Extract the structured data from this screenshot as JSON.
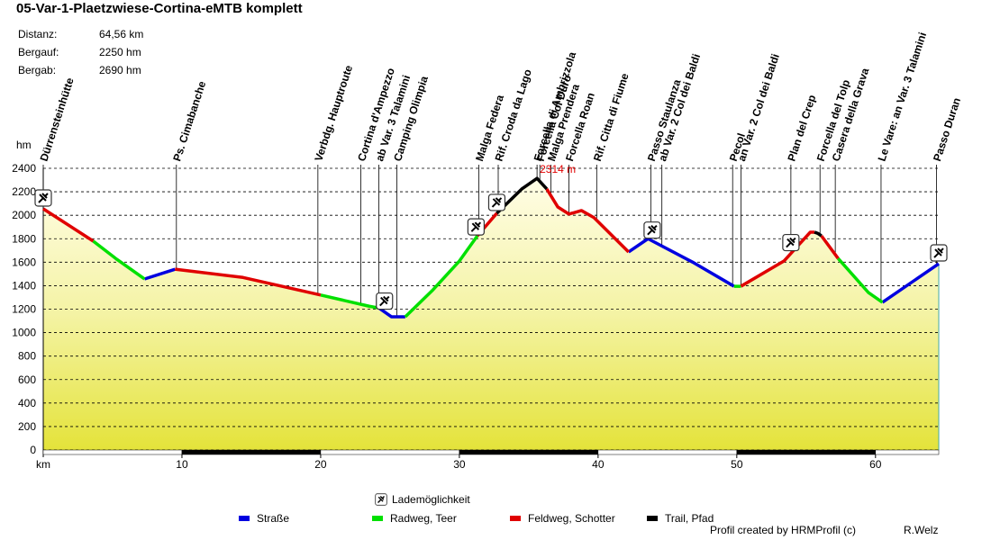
{
  "chart_data": {
    "type": "elevation-profile",
    "title": "05-Var-1-Plaetzwiese-Cortina-eMTB komplett",
    "stats": [
      {
        "label": "Distanz:",
        "value": "64,56 km"
      },
      {
        "label": "Bergauf:",
        "value": "2250 hm"
      },
      {
        "label": "Bergab:",
        "value": "2690 hm"
      }
    ],
    "y_label": "hm",
    "x_label": "km",
    "xlim": [
      0,
      64.56
    ],
    "xticks": [
      10,
      20,
      30,
      40,
      50,
      60
    ],
    "ylim": [
      0,
      2400
    ],
    "yticks": [
      0,
      200,
      400,
      600,
      800,
      1000,
      1200,
      1400,
      1600,
      1800,
      2000,
      2200,
      2400
    ],
    "grid": true,
    "x": [
      0,
      3.6,
      5.3,
      7.3,
      9.5,
      14.4,
      20,
      23.5,
      24.2,
      25.1,
      26.1,
      28.1,
      30,
      31.3,
      32.7,
      34.5,
      35.6,
      36.3,
      37.1,
      37.9,
      38.8,
      39.7,
      42.2,
      43.6,
      46.9,
      49.8,
      50.3,
      53.4,
      55.3,
      55.6,
      55.85,
      56.1,
      57.3,
      59.5,
      60.5,
      64.56
    ],
    "series": [
      {
        "name": "Straße",
        "color": "#0000e0",
        "values": [
          null,
          null,
          null,
          1457,
          1540,
          null,
          null,
          null,
          1210,
          1135,
          1135,
          null,
          null,
          null,
          null,
          null,
          null,
          null,
          null,
          null,
          null,
          null,
          1687,
          1800,
          1595,
          1395,
          null,
          null,
          null,
          null,
          null,
          null,
          null,
          null,
          1258,
          1587
        ]
      },
      {
        "name": "Radweg, Teer",
        "color": "#00e000",
        "values": [
          null,
          1780,
          1625,
          1457,
          null,
          null,
          1320,
          1225,
          1210,
          null,
          1135,
          1365,
          1610,
          1825,
          null,
          null,
          null,
          null,
          null,
          null,
          null,
          null,
          null,
          null,
          null,
          1395,
          1395,
          null,
          null,
          null,
          null,
          null,
          1633,
          1340,
          1258,
          null
        ]
      },
      {
        "name": "Feldweg, Schotter",
        "color": "#e00000",
        "values": [
          2055,
          1780,
          null,
          null,
          1540,
          1470,
          1320,
          null,
          null,
          null,
          null,
          null,
          null,
          1825,
          2017,
          null,
          null,
          2224,
          2070,
          2010,
          2040,
          1980,
          1687,
          null,
          null,
          null,
          1395,
          1610,
          1856,
          1856,
          null,
          1825,
          1633,
          null,
          null,
          null
        ]
      },
      {
        "name": "Trail, Pfad",
        "color": "#000000",
        "values": [
          null,
          null,
          null,
          null,
          null,
          null,
          null,
          null,
          null,
          null,
          null,
          null,
          null,
          null,
          2017,
          2224,
          2314,
          2224,
          null,
          null,
          null,
          null,
          null,
          null,
          null,
          null,
          null,
          null,
          null,
          1856,
          1845,
          1825,
          null,
          null,
          null,
          null
        ]
      }
    ],
    "peak_label": "2314 m",
    "peak_color": "#e00000",
    "charging": {
      "name": "Lademöglichkeit",
      "x": [
        0,
        24.6,
        31.2,
        32.7,
        43.9,
        53.9,
        64.56
      ]
    },
    "waypoints": [
      {
        "name": "Dürrensteinhütte",
        "x": 0
      },
      {
        "name": "Ps. Cimabanche",
        "x": 9.6
      },
      {
        "name": "Verbdg. Hauptroute",
        "x": 19.8
      },
      {
        "name": "Cortina d'Ampezzo",
        "x": 22.9
      },
      {
        "name": "ab Var. 3 Talamini",
        "x": 24.2
      },
      {
        "name": "Camping Olimpia",
        "x": 25.5
      },
      {
        "name": "Malga Federa",
        "x": 31.4
      },
      {
        "name": "Rif. Croda da Lago",
        "x": 32.8
      },
      {
        "name": "Forcella di Ambrizzola",
        "x": 35.6
      },
      {
        "name": "Forcella Col Duro",
        "x": 35.8
      },
      {
        "name": "Malga Prendera",
        "x": 36.6
      },
      {
        "name": "Forcella Roan",
        "x": 37.9
      },
      {
        "name": "Rif. Citta di Fiume",
        "x": 39.9
      },
      {
        "name": "Passo Staulanza",
        "x": 43.8
      },
      {
        "name": "ab Var. 2 Col dei Baldi",
        "x": 44.6
      },
      {
        "name": "Pecol",
        "x": 49.7
      },
      {
        "name": "an Var. 2 Col dei Baldi",
        "x": 50.3
      },
      {
        "name": "Plan del Crep",
        "x": 53.9
      },
      {
        "name": "Forcella del Tolp",
        "x": 56.0
      },
      {
        "name": "Casera della Grava",
        "x": 57.1
      },
      {
        "name": "Le Vare: an Var. 3 Talamini",
        "x": 60.4
      },
      {
        "name": "Passo Duran",
        "x": 64.4
      }
    ],
    "footer_left": "Profil created by HRMProfil (c)",
    "footer_right": "R.Welz"
  }
}
